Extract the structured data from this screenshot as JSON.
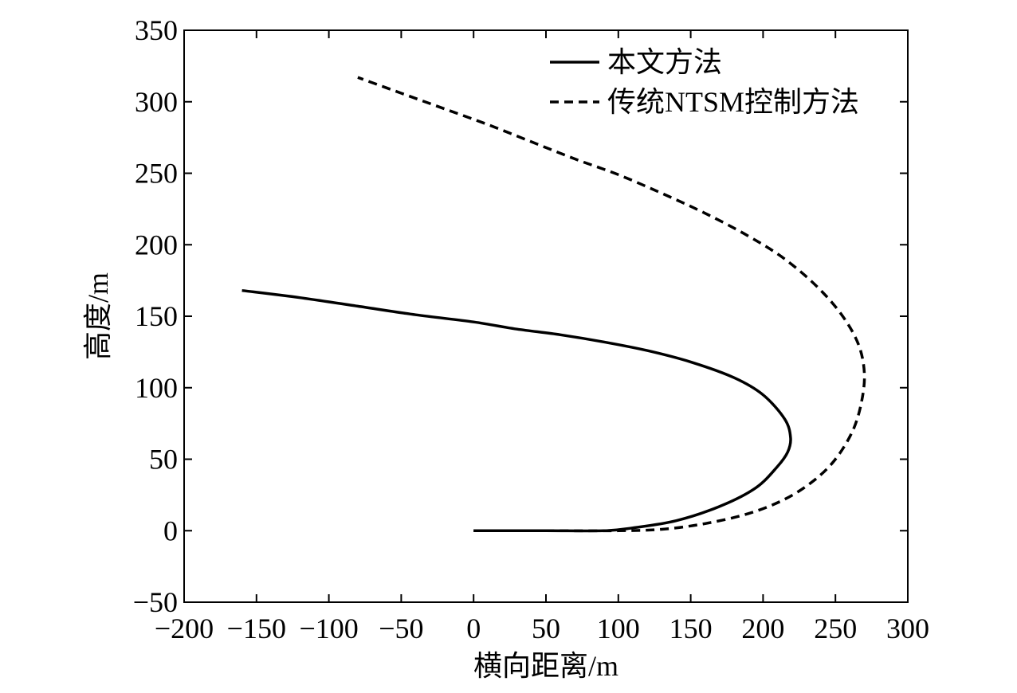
{
  "chart_data": {
    "type": "line",
    "title": "",
    "xlabel": "横向距离/m",
    "ylabel": "高度/m",
    "xlim": [
      -200,
      300
    ],
    "ylim": [
      -50,
      350
    ],
    "xticks": [
      "−200",
      "−150",
      "−100",
      "−50",
      "0",
      "50",
      "100",
      "150",
      "200",
      "250",
      "300"
    ],
    "yticks": [
      "−50",
      "0",
      "50",
      "100",
      "150",
      "200",
      "250",
      "300",
      "350"
    ],
    "xtick_values": [
      -200,
      -150,
      -100,
      -50,
      0,
      50,
      100,
      150,
      200,
      250,
      300
    ],
    "ytick_values": [
      -50,
      0,
      50,
      100,
      150,
      200,
      250,
      300,
      350
    ],
    "grid": false,
    "legend_position": "top-right",
    "series": [
      {
        "name": "本文方法",
        "style": "solid",
        "color": "#000000",
        "x": [
          0,
          50,
          90,
          110,
          140,
          170,
          195,
          210,
          217,
          219,
          215,
          200,
          180,
          150,
          120,
          90,
          60,
          30,
          0,
          -40,
          -80,
          -120,
          -160
        ],
        "y": [
          0,
          0,
          0,
          2,
          7,
          17,
          30,
          45,
          55,
          65,
          78,
          95,
          107,
          118,
          126,
          132,
          137,
          141,
          146,
          151,
          157,
          163,
          168
        ]
      },
      {
        "name": "传统NTSM控制方法",
        "style": "dashed",
        "color": "#000000",
        "x": [
          0,
          60,
          100,
          130,
          160,
          190,
          215,
          235,
          250,
          262,
          268,
          270,
          266,
          255,
          238,
          215,
          190,
          160,
          130,
          100,
          70,
          40,
          10,
          -20,
          -50,
          -80
        ],
        "y": [
          0,
          0,
          0,
          1,
          5,
          12,
          22,
          35,
          50,
          70,
          90,
          110,
          130,
          150,
          170,
          190,
          206,
          222,
          236,
          249,
          260,
          272,
          284,
          295,
          306,
          317
        ]
      }
    ]
  }
}
